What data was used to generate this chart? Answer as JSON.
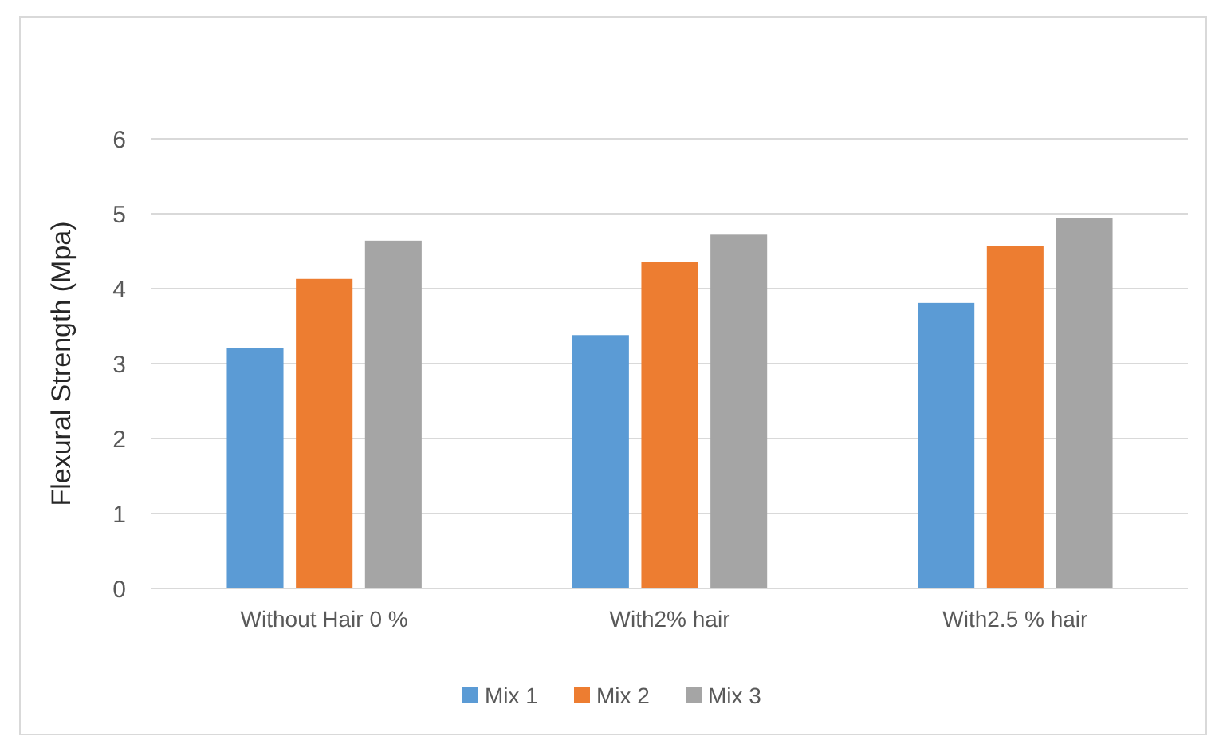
{
  "chart_data": {
    "type": "bar",
    "ylabel": "Flexural Strength (Mpa)",
    "categories": [
      "Without Hair 0 %",
      "With2% hair",
      "With2.5 % hair"
    ],
    "series": [
      {
        "name": "Mix 1",
        "color": "#5b9bd5",
        "values": [
          3.21,
          3.38,
          3.81
        ]
      },
      {
        "name": "Mix 2",
        "color": "#ed7d31",
        "values": [
          4.13,
          4.36,
          4.57
        ]
      },
      {
        "name": "Mix 3",
        "color": "#a5a5a5",
        "values": [
          4.64,
          4.72,
          4.94
        ]
      }
    ],
    "ylim": [
      0,
      6
    ],
    "yticks": [
      0,
      1,
      2,
      3,
      4,
      5,
      6
    ],
    "grid": "y",
    "legend": "bottom"
  }
}
